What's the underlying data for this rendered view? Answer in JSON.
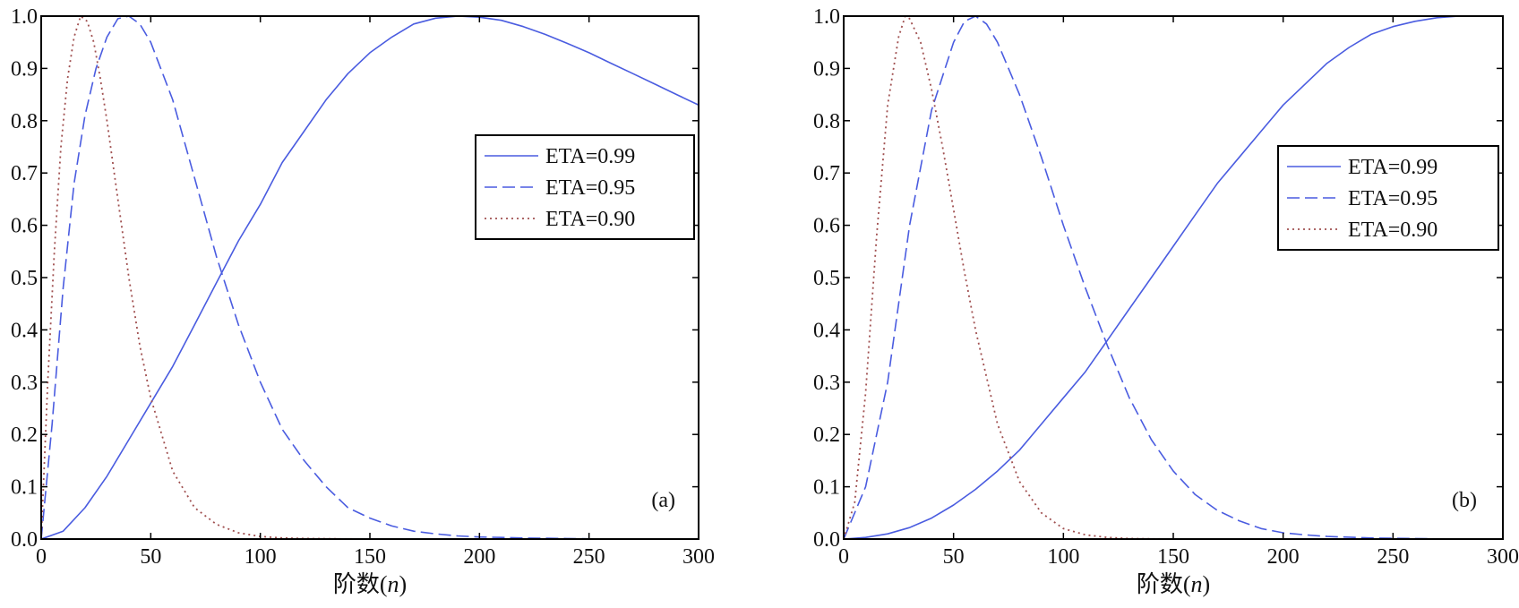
{
  "colors": {
    "ETA=0.99": "#4a5ce0",
    "ETA=0.95": "#4a5ce0",
    "ETA=0.90": "#a05050",
    "axis": "#000000"
  },
  "chart_data": [
    {
      "type": "line",
      "panel_label": "(a)",
      "xlabel": "阶数(n)",
      "xlabel_prefix": "阶数(",
      "xlabel_var": "n",
      "xlabel_suffix": ")",
      "xlim": [
        0,
        300
      ],
      "ylim": [
        0,
        1
      ],
      "xticks": [
        "0",
        "50",
        "100",
        "150",
        "200",
        "250",
        "300"
      ],
      "yticks": [
        "0.0",
        "0.1",
        "0.2",
        "0.3",
        "0.4",
        "0.5",
        "0.6",
        "0.7",
        "0.8",
        "0.9",
        "1.0"
      ],
      "grid": false,
      "legend_position": "upper-right",
      "series": [
        {
          "name": "ETA=0.99",
          "style": "solid",
          "x": [
            0,
            10,
            20,
            30,
            40,
            50,
            60,
            70,
            80,
            90,
            100,
            110,
            120,
            130,
            140,
            150,
            160,
            170,
            180,
            190,
            200,
            210,
            220,
            230,
            240,
            250,
            260,
            270,
            280,
            290,
            300
          ],
          "y": [
            0,
            0.015,
            0.06,
            0.12,
            0.19,
            0.26,
            0.33,
            0.41,
            0.49,
            0.57,
            0.64,
            0.72,
            0.78,
            0.84,
            0.89,
            0.93,
            0.96,
            0.985,
            0.996,
            1.0,
            0.998,
            0.992,
            0.98,
            0.965,
            0.948,
            0.93,
            0.91,
            0.89,
            0.87,
            0.85,
            0.83
          ]
        },
        {
          "name": "ETA=0.95",
          "style": "dashed",
          "x": [
            0,
            5,
            10,
            15,
            20,
            25,
            30,
            35,
            40,
            45,
            50,
            60,
            70,
            80,
            90,
            100,
            110,
            120,
            130,
            140,
            150,
            160,
            170,
            180,
            190,
            200,
            210,
            220,
            240,
            260,
            280,
            300
          ],
          "y": [
            0,
            0.22,
            0.48,
            0.68,
            0.81,
            0.9,
            0.96,
            0.995,
            1.0,
            0.985,
            0.95,
            0.84,
            0.69,
            0.54,
            0.41,
            0.3,
            0.21,
            0.15,
            0.1,
            0.06,
            0.04,
            0.025,
            0.015,
            0.01,
            0.006,
            0.004,
            0.003,
            0.002,
            0.001,
            0,
            0,
            0
          ]
        },
        {
          "name": "ETA=0.90",
          "style": "dotted",
          "x": [
            0,
            3,
            6,
            9,
            12,
            15,
            18,
            21,
            24,
            27,
            30,
            35,
            40,
            45,
            50,
            60,
            70,
            80,
            90,
            100,
            110,
            120,
            150,
            200,
            250,
            300
          ],
          "y": [
            0,
            0.3,
            0.55,
            0.75,
            0.88,
            0.96,
            1.0,
            0.99,
            0.95,
            0.88,
            0.8,
            0.65,
            0.5,
            0.37,
            0.27,
            0.13,
            0.06,
            0.028,
            0.012,
            0.005,
            0.002,
            0.001,
            0,
            0,
            0,
            0
          ]
        }
      ]
    },
    {
      "type": "line",
      "panel_label": "(b)",
      "xlabel": "阶数(n)",
      "xlabel_prefix": "阶数(",
      "xlabel_var": "n",
      "xlabel_suffix": ")",
      "xlim": [
        0,
        300
      ],
      "ylim": [
        0,
        1
      ],
      "xticks": [
        "0",
        "50",
        "100",
        "150",
        "200",
        "250",
        "300"
      ],
      "yticks": [
        "0.0",
        "0.1",
        "0.2",
        "0.3",
        "0.4",
        "0.5",
        "0.6",
        "0.7",
        "0.8",
        "0.9",
        "1.0"
      ],
      "grid": false,
      "legend_position": "upper-right",
      "series": [
        {
          "name": "ETA=0.99",
          "style": "solid",
          "x": [
            0,
            10,
            20,
            30,
            40,
            50,
            60,
            70,
            80,
            90,
            100,
            110,
            120,
            130,
            140,
            150,
            160,
            170,
            180,
            190,
            200,
            210,
            220,
            230,
            240,
            250,
            260,
            270,
            280,
            290,
            300
          ],
          "y": [
            0,
            0.003,
            0.01,
            0.022,
            0.04,
            0.065,
            0.095,
            0.13,
            0.17,
            0.22,
            0.27,
            0.32,
            0.38,
            0.44,
            0.5,
            0.56,
            0.62,
            0.68,
            0.73,
            0.78,
            0.83,
            0.87,
            0.91,
            0.94,
            0.965,
            0.98,
            0.99,
            0.997,
            1.0,
            1.0,
            1.0
          ]
        },
        {
          "name": "ETA=0.95",
          "style": "dashed",
          "x": [
            0,
            10,
            20,
            30,
            40,
            50,
            55,
            60,
            65,
            70,
            80,
            90,
            100,
            110,
            120,
            130,
            140,
            150,
            160,
            170,
            180,
            190,
            200,
            210,
            220,
            240,
            260,
            280,
            300
          ],
          "y": [
            0,
            0.1,
            0.3,
            0.6,
            0.82,
            0.95,
            0.99,
            1.0,
            0.985,
            0.95,
            0.85,
            0.73,
            0.6,
            0.48,
            0.37,
            0.27,
            0.19,
            0.13,
            0.085,
            0.055,
            0.035,
            0.02,
            0.012,
            0.008,
            0.005,
            0.002,
            0.001,
            0,
            0
          ]
        },
        {
          "name": "ETA=0.90",
          "style": "dotted",
          "x": [
            0,
            5,
            10,
            15,
            20,
            25,
            28,
            30,
            35,
            40,
            45,
            50,
            55,
            60,
            70,
            80,
            90,
            100,
            110,
            120,
            130,
            150,
            200,
            250,
            300
          ],
          "y": [
            0,
            0.07,
            0.28,
            0.58,
            0.83,
            0.96,
            1.0,
            0.995,
            0.95,
            0.86,
            0.75,
            0.63,
            0.51,
            0.4,
            0.22,
            0.11,
            0.05,
            0.02,
            0.008,
            0.003,
            0.001,
            0,
            0,
            0,
            0
          ]
        }
      ]
    }
  ]
}
